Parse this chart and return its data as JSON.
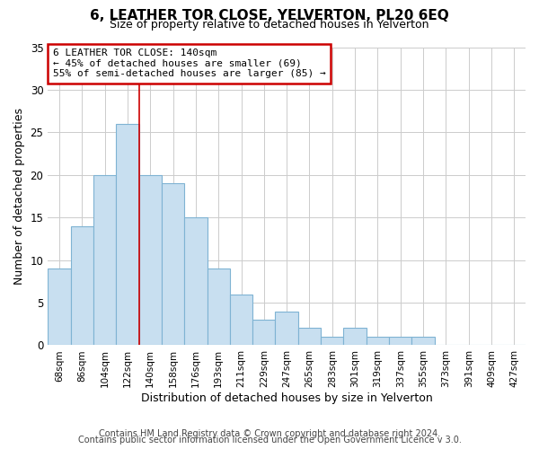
{
  "title": "6, LEATHER TOR CLOSE, YELVERTON, PL20 6EQ",
  "subtitle": "Size of property relative to detached houses in Yelverton",
  "xlabel": "Distribution of detached houses by size in Yelverton",
  "ylabel": "Number of detached properties",
  "footer_line1": "Contains HM Land Registry data © Crown copyright and database right 2024.",
  "footer_line2": "Contains public sector information licensed under the Open Government Licence v 3.0.",
  "bar_labels": [
    "68sqm",
    "86sqm",
    "104sqm",
    "122sqm",
    "140sqm",
    "158sqm",
    "176sqm",
    "193sqm",
    "211sqm",
    "229sqm",
    "247sqm",
    "265sqm",
    "283sqm",
    "301sqm",
    "319sqm",
    "337sqm",
    "355sqm",
    "373sqm",
    "391sqm",
    "409sqm",
    "427sqm"
  ],
  "bar_values": [
    9,
    14,
    20,
    26,
    20,
    19,
    15,
    9,
    6,
    3,
    4,
    2,
    1,
    2,
    1,
    1,
    1,
    0,
    0,
    0,
    0
  ],
  "highlight_index": 3,
  "bar_color": "#c8dff0",
  "bar_edge_color": "#7fb3d3",
  "annotation_box_edge": "#cc0000",
  "annotation_text_line1": "6 LEATHER TOR CLOSE: 140sqm",
  "annotation_text_line2": "← 45% of detached houses are smaller (69)",
  "annotation_text_line3": "55% of semi-detached houses are larger (85) →",
  "ylim": [
    0,
    35
  ],
  "yticks": [
    0,
    5,
    10,
    15,
    20,
    25,
    30,
    35
  ],
  "background_color": "#ffffff",
  "grid_color": "#cccccc",
  "vline_color": "#cc0000"
}
